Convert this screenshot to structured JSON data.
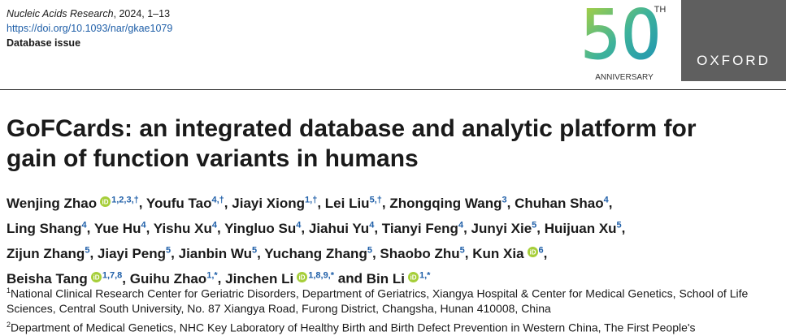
{
  "header": {
    "journal": "Nucleic Acids Research",
    "citation": ", 2024, 1–13",
    "doi": "https://doi.org/10.1093/nar/gkae1079",
    "section": "Database issue"
  },
  "logo": {
    "number": "50",
    "suffix": "TH",
    "caption": "ANNIVERSARY",
    "publisher": "OXFORD"
  },
  "title": [
    "GoFCards: an integrated database and analytic platform for",
    "gain of function variants in humans"
  ],
  "separator": ",",
  "conjunction": "and",
  "author_lines": [
    [
      {
        "name": "Wenjing Zhao",
        "orcid": true,
        "sup": "1,2,3,†"
      },
      {
        "name": "Youfu Tao",
        "orcid": false,
        "sup": "4,†"
      },
      {
        "name": "Jiayi Xiong",
        "orcid": false,
        "sup": "1,†"
      },
      {
        "name": "Lei Liu",
        "orcid": false,
        "sup": "5,†"
      },
      {
        "name": "Zhongqing Wang",
        "orcid": false,
        "sup": "3"
      },
      {
        "name": "Chuhan Shao",
        "orcid": false,
        "sup": "4"
      }
    ],
    [
      {
        "name": "Ling Shang",
        "orcid": false,
        "sup": "4"
      },
      {
        "name": "Yue Hu",
        "orcid": false,
        "sup": "4"
      },
      {
        "name": "Yishu Xu",
        "orcid": false,
        "sup": "4"
      },
      {
        "name": "Yingluo Su",
        "orcid": false,
        "sup": "4"
      },
      {
        "name": "Jiahui Yu",
        "orcid": false,
        "sup": "4"
      },
      {
        "name": "Tianyi Feng",
        "orcid": false,
        "sup": "4"
      },
      {
        "name": "Junyi Xie",
        "orcid": false,
        "sup": "5"
      },
      {
        "name": "Huijuan Xu",
        "orcid": false,
        "sup": "5"
      }
    ],
    [
      {
        "name": "Zijun Zhang",
        "orcid": false,
        "sup": "5"
      },
      {
        "name": "Jiayi Peng",
        "orcid": false,
        "sup": "5"
      },
      {
        "name": "Jianbin Wu",
        "orcid": false,
        "sup": "5"
      },
      {
        "name": "Yuchang Zhang",
        "orcid": false,
        "sup": "5"
      },
      {
        "name": "Shaobo Zhu",
        "orcid": false,
        "sup": "5"
      },
      {
        "name": "Kun Xia",
        "orcid": true,
        "sup": "6"
      }
    ],
    [
      {
        "name": "Beisha Tang",
        "orcid": true,
        "sup": "1,7,8"
      },
      {
        "name": "Guihu Zhao",
        "orcid": false,
        "sup": "1,*"
      },
      {
        "name": "Jinchen Li",
        "orcid": true,
        "sup": "1,8,9,*"
      },
      {
        "name": "Bin Li",
        "orcid": true,
        "sup": "1,*"
      }
    ]
  ],
  "affiliations": [
    {
      "number": "1",
      "text": "National Clinical Research Center for Geriatric Disorders, Department of Geriatrics, Xiangya Hospital & Center for Medical Genetics, School of Life Sciences, Central South University, No. 87 Xiangya Road, Furong District, Changsha, Hunan 410008, China"
    },
    {
      "number": "2",
      "text": "Department of Medical Genetics, NHC Key Laboratory of Healthy Birth and Birth Defect Prevention in Western China, The First People's"
    }
  ]
}
